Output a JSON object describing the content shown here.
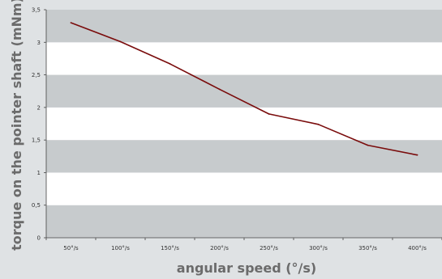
{
  "chart_data": {
    "type": "line",
    "xlabel": "angular speed (°/s)",
    "ylabel": "torque on the pointer shaft (mNm)",
    "categories": [
      "50°/s",
      "100°/s",
      "150°/s",
      "200°/s",
      "250°/s",
      "300°/s",
      "350°/s",
      "400°/s"
    ],
    "yticks": [
      "0",
      "0,5",
      "1",
      "1,5",
      "2",
      "2,5",
      "3",
      "3,5"
    ],
    "ylim": [
      0,
      3.5
    ],
    "grid": "alternating horizontal bands",
    "legend": "none",
    "series": [
      {
        "values": [
          3.3,
          3.01,
          2.67,
          2.28,
          1.9,
          1.74,
          1.42,
          1.27
        ],
        "color": "#7a0c0c"
      }
    ],
    "colors": {
      "band": "#c7cbcd",
      "background": "#ffffff",
      "page": "#dfe2e4",
      "line": "#7a0c0c"
    }
  }
}
